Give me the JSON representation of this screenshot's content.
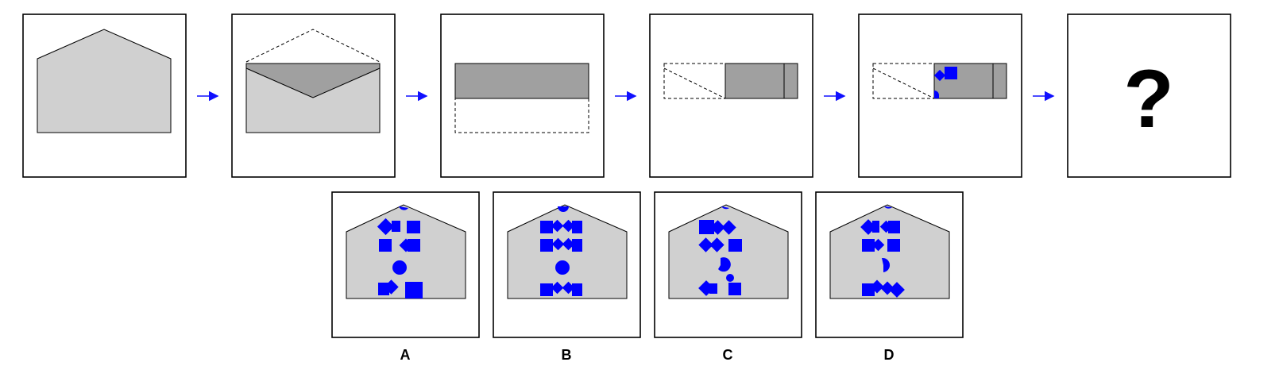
{
  "question_mark": "?",
  "options": [
    {
      "letter": "A"
    },
    {
      "letter": "B"
    },
    {
      "letter": "C"
    },
    {
      "letter": "D"
    }
  ],
  "colors": {
    "frame_stroke": "#000000",
    "paper_light": "#d0d0d0",
    "paper_dark": "#a0a0a0",
    "fold_line": "#000000",
    "arrow": "#1010ff",
    "hole": "#0000ff"
  },
  "icons": [
    "arrow-right-icon",
    "question-mark-icon"
  ]
}
